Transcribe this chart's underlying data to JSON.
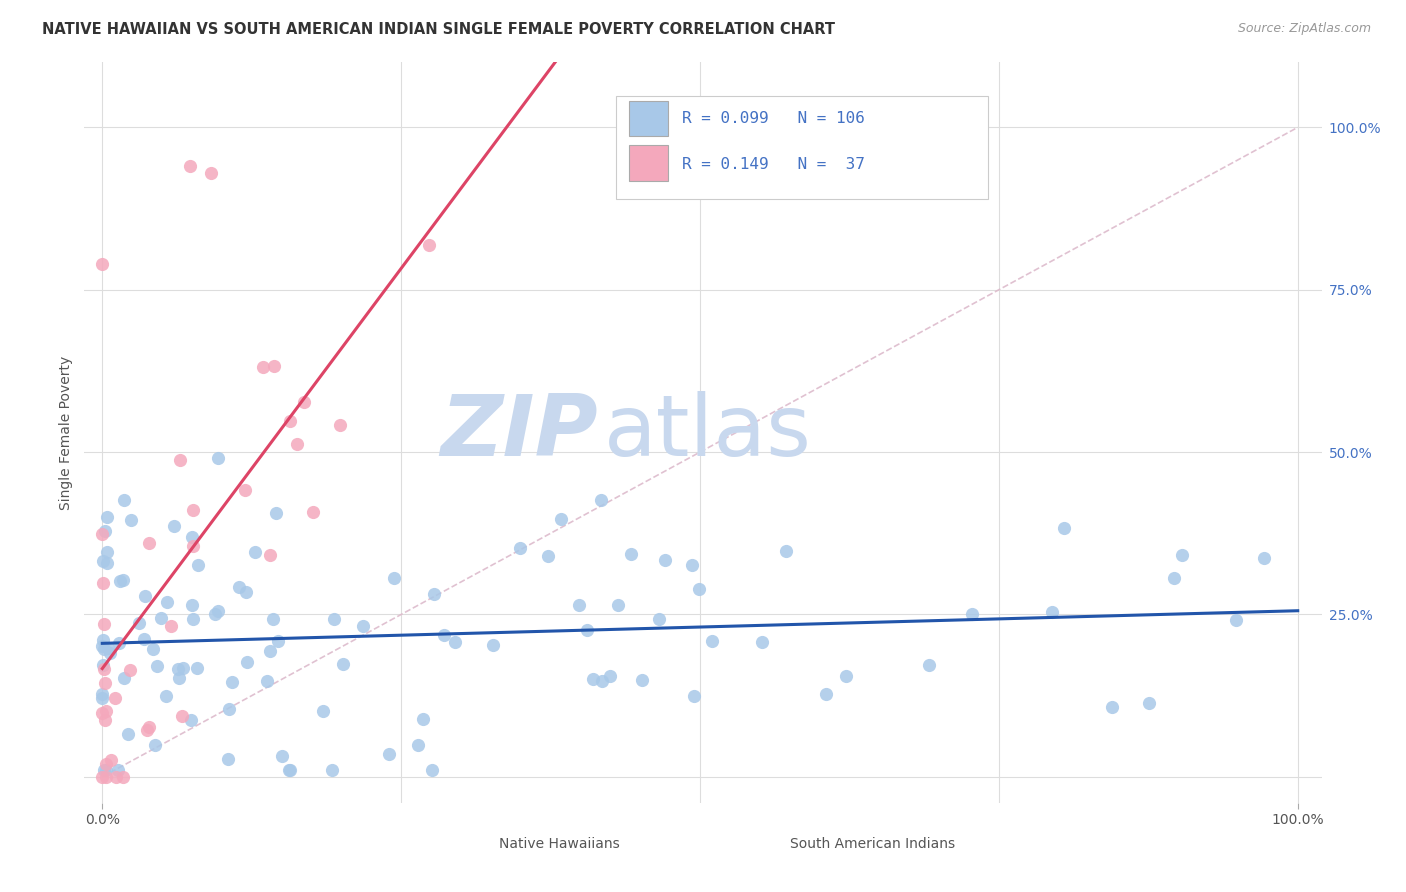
{
  "title": "NATIVE HAWAIIAN VS SOUTH AMERICAN INDIAN SINGLE FEMALE POVERTY CORRELATION CHART",
  "source": "Source: ZipAtlas.com",
  "ylabel": "Single Female Poverty",
  "legend_label1": "Native Hawaiians",
  "legend_label2": "South American Indians",
  "r1": 0.099,
  "n1": 106,
  "r2": 0.149,
  "n2": 37,
  "color1": "#a8c8e8",
  "color2": "#f4a8bc",
  "trendline1_color": "#2255aa",
  "trendline2_color": "#dd4466",
  "diagonal_color": "#ddbbcc",
  "title_fontsize": 10.5,
  "source_fontsize": 9,
  "watermark_zip_color": "#c8d8ee",
  "watermark_atlas_color": "#c8d8ee",
  "ytick_labels": [
    "25.0%",
    "50.0%",
    "75.0%",
    "100.0%"
  ],
  "ytick_positions": [
    0.25,
    0.5,
    0.75,
    1.0
  ],
  "grid_color": "#dddddd",
  "background_color": "#ffffff",
  "legend_text_color": "#4472c4",
  "legend_R_color": "#4472c4"
}
